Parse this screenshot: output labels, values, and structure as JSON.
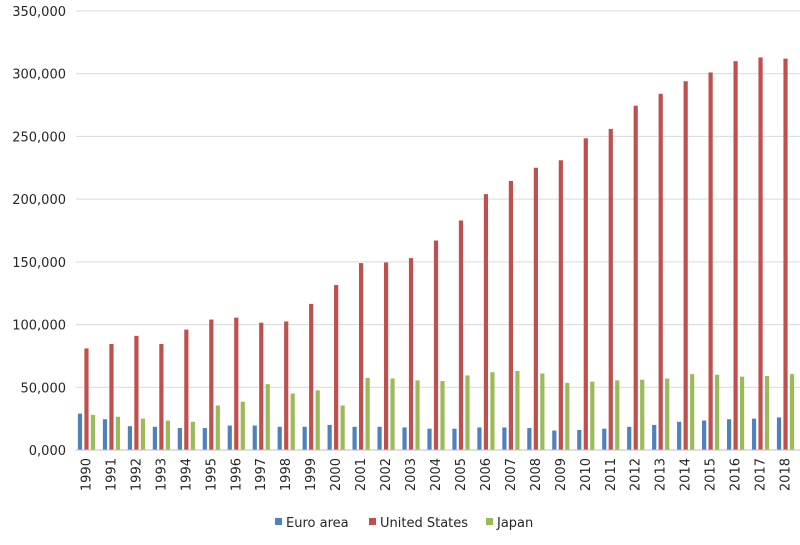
{
  "chart_data": {
    "type": "bar",
    "categories": [
      "1990",
      "1991",
      "1992",
      "1993",
      "1994",
      "1995",
      "1996",
      "1997",
      "1998",
      "1999",
      "2000",
      "2001",
      "2002",
      "2003",
      "2004",
      "2005",
      "2006",
      "2007",
      "2008",
      "2009",
      "2010",
      "2011",
      "2012",
      "2013",
      "2014",
      "2015",
      "2016",
      "2017",
      "2018"
    ],
    "series": [
      {
        "name": "Euro area",
        "color": "#4F81BD",
        "values": [
          29000,
          24500,
          19000,
          18500,
          17500,
          17500,
          19500,
          19500,
          18500,
          18500,
          20000,
          18500,
          18500,
          18000,
          17000,
          17000,
          18000,
          18000,
          17500,
          15500,
          16000,
          17000,
          18500,
          20000,
          22500,
          23500,
          24500,
          25000,
          26000
        ]
      },
      {
        "name": "United States",
        "color": "#C0504D",
        "values": [
          81000,
          84500,
          91000,
          84500,
          96000,
          104000,
          105500,
          101500,
          102500,
          116500,
          131500,
          149000,
          149500,
          153000,
          167000,
          183000,
          204000,
          214500,
          225000,
          231000,
          248500,
          256000,
          274500,
          284000,
          294000,
          301000,
          310000,
          313000,
          312000
        ]
      },
      {
        "name": "Japan",
        "color": "#9BBB59",
        "values": [
          28000,
          26500,
          25000,
          23500,
          22500,
          35500,
          38500,
          52500,
          45000,
          47500,
          35500,
          57500,
          57000,
          55500,
          55000,
          59500,
          62000,
          63000,
          61000,
          53500,
          54500,
          55500,
          56000,
          57000,
          60500,
          60000,
          58500,
          59000,
          60500
        ]
      }
    ],
    "yticks": [
      "0,000",
      "50,000",
      "100,000",
      "150,000",
      "200,000",
      "250,000",
      "300,000",
      "350,000"
    ],
    "ylim": [
      0,
      350000
    ],
    "title": "",
    "xlabel": "",
    "ylabel": "",
    "grid": true,
    "legend_position": "bottom"
  }
}
